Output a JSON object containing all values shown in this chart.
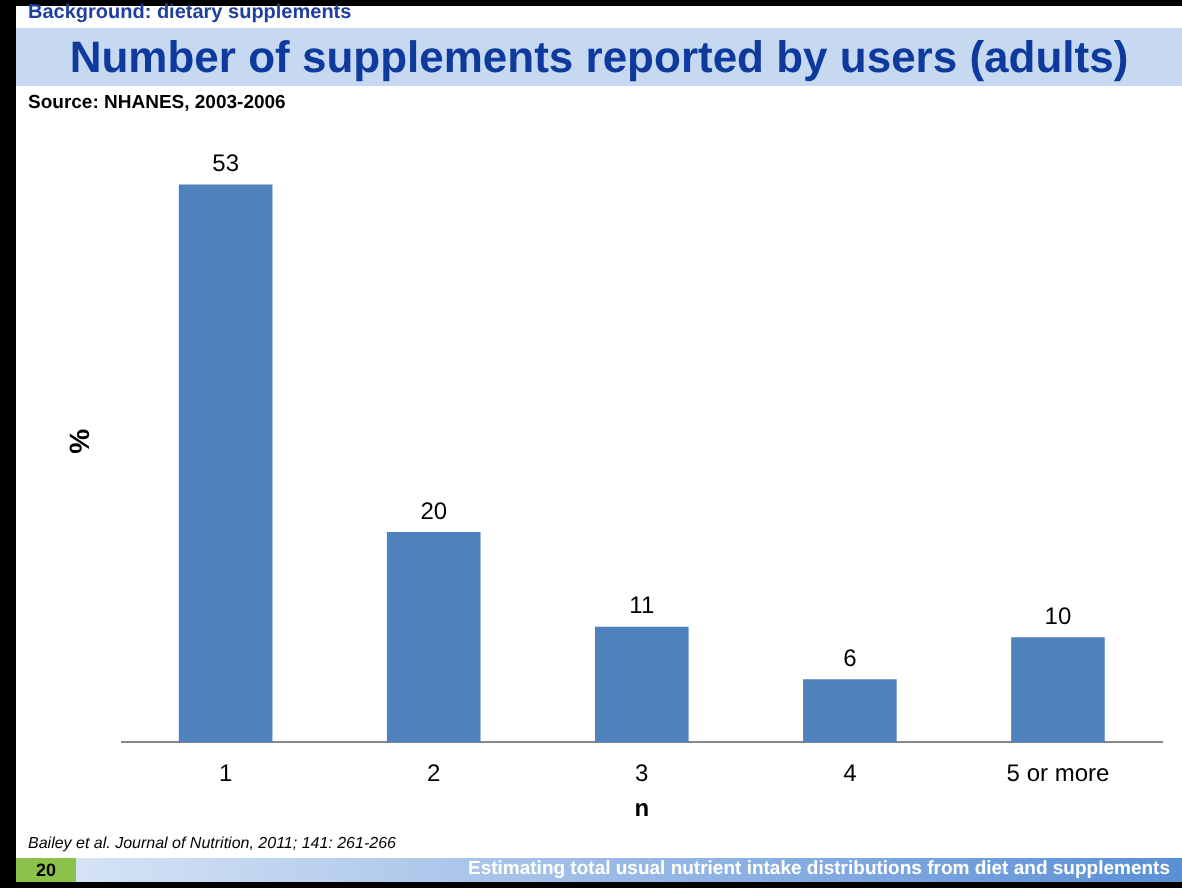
{
  "chart_data": {
    "type": "bar",
    "title": "Number of supplements reported by users (adults)",
    "subtitle": "Source: NHANES, 2003-2006",
    "annotations": [
      "Background: dietary supplements",
      "Bailey et al. Journal of Nutrition, 2011; 141: 261-266",
      "20",
      "Estimating total usual nutrient intake distributions from diet and supplements"
    ],
    "xlabel": "n",
    "ylabel": "%",
    "categories": [
      "1",
      "2",
      "3",
      "4",
      "5 or more"
    ],
    "values": [
      53,
      20,
      11,
      6,
      10
    ],
    "color": "#4f81bd",
    "data_labels": true,
    "grid": false,
    "legend": false
  }
}
